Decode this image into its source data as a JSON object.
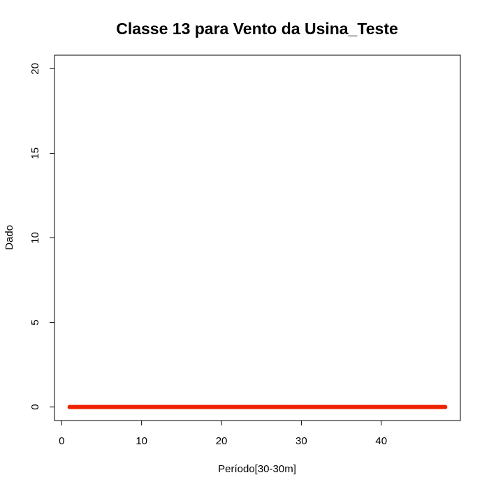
{
  "chart_data": {
    "type": "line",
    "title": "Classe  13 para Vento da Usina_Teste",
    "xlabel": "Período[30-30m]",
    "ylabel": "Dado",
    "xlim": [
      -0.9,
      49.9
    ],
    "ylim": [
      -0.8,
      20.8
    ],
    "xticks": [
      0,
      10,
      20,
      30,
      40
    ],
    "yticks": [
      0,
      5,
      10,
      15,
      20
    ],
    "grid": false,
    "series": [
      {
        "color": "#ee2200",
        "x": [
          1,
          2,
          3,
          4,
          5,
          6,
          7,
          8,
          9,
          10,
          11,
          12,
          13,
          14,
          15,
          16,
          17,
          18,
          19,
          20,
          21,
          22,
          23,
          24,
          25,
          26,
          27,
          28,
          29,
          30,
          31,
          32,
          33,
          34,
          35,
          36,
          37,
          38,
          39,
          40,
          41,
          42,
          43,
          44,
          45,
          46,
          47,
          48
        ],
        "values": [
          0,
          0,
          0,
          0,
          0,
          0,
          0,
          0,
          0,
          0,
          0,
          0,
          0,
          0,
          0,
          0,
          0,
          0,
          0,
          0,
          0,
          0,
          0,
          0,
          0,
          0,
          0,
          0,
          0,
          0,
          0,
          0,
          0,
          0,
          0,
          0,
          0,
          0,
          0,
          0,
          0,
          0,
          0,
          0,
          0,
          0,
          0,
          0
        ]
      }
    ]
  }
}
